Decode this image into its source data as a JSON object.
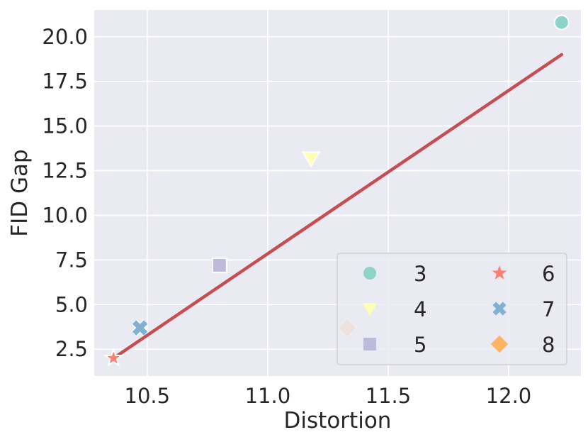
{
  "chart_data": {
    "type": "scatter",
    "title": "",
    "xlabel": "Distortion",
    "ylabel": "FID Gap",
    "xlim": [
      10.28,
      12.3
    ],
    "ylim": [
      1.0,
      21.5
    ],
    "xticks": [
      10.5,
      11.0,
      11.5,
      12.0
    ],
    "xtick_labels": [
      "10.5",
      "11.0",
      "11.5",
      "12.0"
    ],
    "yticks": [
      2.5,
      5.0,
      7.5,
      10.0,
      12.5,
      15.0,
      17.5,
      20.0
    ],
    "ytick_labels": [
      "2.5",
      "5.0",
      "7.5",
      "10.0",
      "12.5",
      "15.0",
      "17.5",
      "20.0"
    ],
    "grid": true,
    "background_color": "#eaeaf2",
    "series": [
      {
        "name": "3",
        "marker": "circle",
        "color": "#8dd3c7",
        "points": [
          {
            "x": 12.22,
            "y": 20.8
          }
        ]
      },
      {
        "name": "4",
        "marker": "triangle-down",
        "color": "#ffffb3",
        "points": [
          {
            "x": 11.18,
            "y": 13.2
          }
        ]
      },
      {
        "name": "5",
        "marker": "square",
        "color": "#bebada",
        "points": [
          {
            "x": 10.8,
            "y": 7.2
          }
        ]
      },
      {
        "name": "6",
        "marker": "star",
        "color": "#fb8072",
        "points": [
          {
            "x": 10.36,
            "y": 2.0
          }
        ]
      },
      {
        "name": "7",
        "marker": "x",
        "color": "#80b1d3",
        "points": [
          {
            "x": 10.47,
            "y": 3.7
          }
        ]
      },
      {
        "name": "8",
        "marker": "diamond",
        "color": "#fdb462",
        "points": [
          {
            "x": 11.33,
            "y": 3.7
          }
        ]
      }
    ],
    "fit_line": {
      "color": "#c44e52",
      "x": [
        10.36,
        12.22
      ],
      "y": [
        2.0,
        19.0
      ]
    },
    "legend": {
      "location": "lower-right",
      "columns": 2
    }
  }
}
